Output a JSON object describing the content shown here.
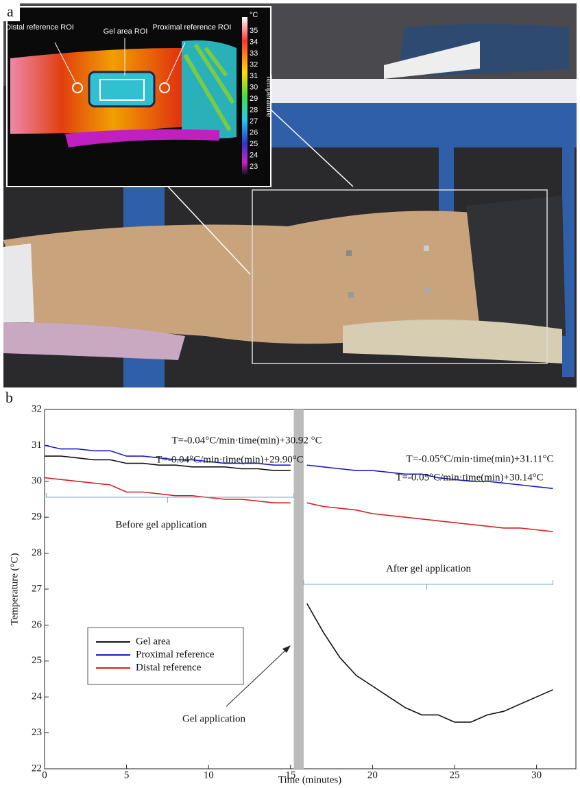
{
  "panel_a": {
    "label": "a",
    "roi_labels": [
      "Distal reference ROI",
      "Gel area ROI",
      "Proximal reference ROI"
    ],
    "colorbar": {
      "unit": "°C",
      "title": "Temperature",
      "ticks": [
        35,
        34,
        33,
        32,
        31,
        30,
        29,
        28,
        27,
        26,
        25,
        24,
        23
      ]
    }
  },
  "chart_data": {
    "type": "line",
    "panel_label": "b",
    "x_label": "Time (minutes)",
    "y_label": "Temperature (°C)",
    "xlim": [
      0,
      32.4
    ],
    "xticks": [
      0,
      5,
      10,
      15,
      20,
      25,
      30
    ],
    "ylim": [
      22,
      32
    ],
    "yticks": [
      22,
      23,
      24,
      25,
      26,
      27,
      28,
      29,
      30,
      31,
      32
    ],
    "x": [
      0,
      1,
      2,
      3,
      4,
      5,
      6,
      7,
      8,
      9,
      10,
      11,
      12,
      13,
      14,
      15,
      15.5,
      16,
      17,
      18,
      19,
      20,
      21,
      22,
      23,
      24,
      25,
      26,
      27,
      28,
      29,
      30,
      31
    ],
    "series": [
      {
        "name": "Gel area",
        "color": "#111111",
        "values": [
          30.7,
          30.7,
          30.65,
          30.6,
          30.6,
          30.5,
          30.5,
          30.45,
          30.45,
          30.4,
          30.4,
          30.4,
          30.35,
          30.35,
          30.3,
          30.3,
          null,
          26.6,
          25.8,
          25.1,
          24.6,
          24.3,
          24.0,
          23.7,
          23.5,
          23.5,
          23.3,
          23.3,
          23.5,
          23.6,
          23.8,
          24.0,
          24.2
        ]
      },
      {
        "name": "Proximal reference",
        "color": "#1a1acc",
        "values": [
          31.0,
          30.9,
          30.9,
          30.85,
          30.85,
          30.7,
          30.7,
          30.65,
          30.6,
          30.6,
          30.55,
          30.5,
          30.5,
          30.5,
          30.45,
          30.45,
          null,
          30.45,
          30.4,
          30.35,
          30.3,
          30.3,
          30.25,
          30.2,
          30.2,
          30.1,
          30.05,
          30.0,
          30.0,
          29.95,
          29.9,
          29.85,
          29.8
        ]
      },
      {
        "name": "Distal reference",
        "color": "#d42020",
        "values": [
          30.1,
          30.05,
          30.0,
          29.95,
          29.9,
          29.7,
          29.7,
          29.65,
          29.6,
          29.6,
          29.55,
          29.5,
          29.5,
          29.45,
          29.4,
          29.4,
          null,
          29.4,
          29.3,
          29.25,
          29.2,
          29.1,
          29.05,
          29.0,
          28.95,
          28.9,
          28.85,
          28.8,
          28.75,
          28.7,
          28.7,
          28.65,
          28.6
        ]
      }
    ],
    "annotations": [
      "T=-0.04°C/min·time(min)+30.92 °C",
      "T=-0.04°C/min·time(min)+29.90°C",
      "T=-0.05°C/min·time(min)+31.11°C",
      "T=-0.05°C/min·time(min)+30.14°C",
      "Before gel application",
      "After gel application",
      "Gel application"
    ]
  }
}
